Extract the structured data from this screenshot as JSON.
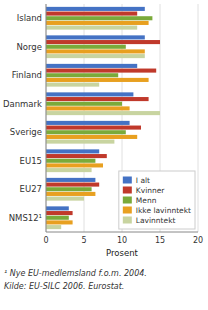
{
  "chart_data": {
    "type": "bar",
    "orientation": "horizontal",
    "xlabel": "Prosent",
    "annotations": [
      "¹ Nye EU-medlemsland f.o.m. 2004.",
      "Kilde: EU-SILC 2006. Eurostat."
    ],
    "categories": [
      "Island",
      "Norge",
      "Finland",
      "Danmark",
      "Sverige",
      "EU15",
      "EU27",
      "NMS12¹"
    ],
    "series": [
      {
        "name": "I alt",
        "color": "#4472c4",
        "values": [
          13.0,
          13.0,
          12.0,
          11.5,
          11.0,
          7.0,
          6.5,
          3.0
        ]
      },
      {
        "name": "Kvinner",
        "color": "#c0392b",
        "values": [
          12.0,
          15.0,
          14.5,
          13.5,
          12.5,
          8.0,
          7.0,
          3.5
        ]
      },
      {
        "name": "Menn",
        "color": "#7aaa3a",
        "values": [
          14.0,
          10.5,
          9.5,
          10.0,
          10.5,
          6.5,
          6.0,
          3.0
        ]
      },
      {
        "name": "Ikke lavinntekt",
        "color": "#e8a020",
        "values": [
          13.5,
          13.0,
          13.5,
          11.0,
          12.0,
          7.5,
          6.5,
          3.5
        ]
      },
      {
        "name": "Lavinntekt",
        "color": "#c8d4a0",
        "values": [
          12.0,
          13.0,
          7.0,
          15.0,
          9.0,
          6.0,
          5.0,
          2.0
        ]
      }
    ],
    "xlim": [
      0,
      20
    ],
    "xticks": [
      0,
      5,
      10,
      15,
      20
    ],
    "grid": true,
    "legend": "lower right"
  }
}
